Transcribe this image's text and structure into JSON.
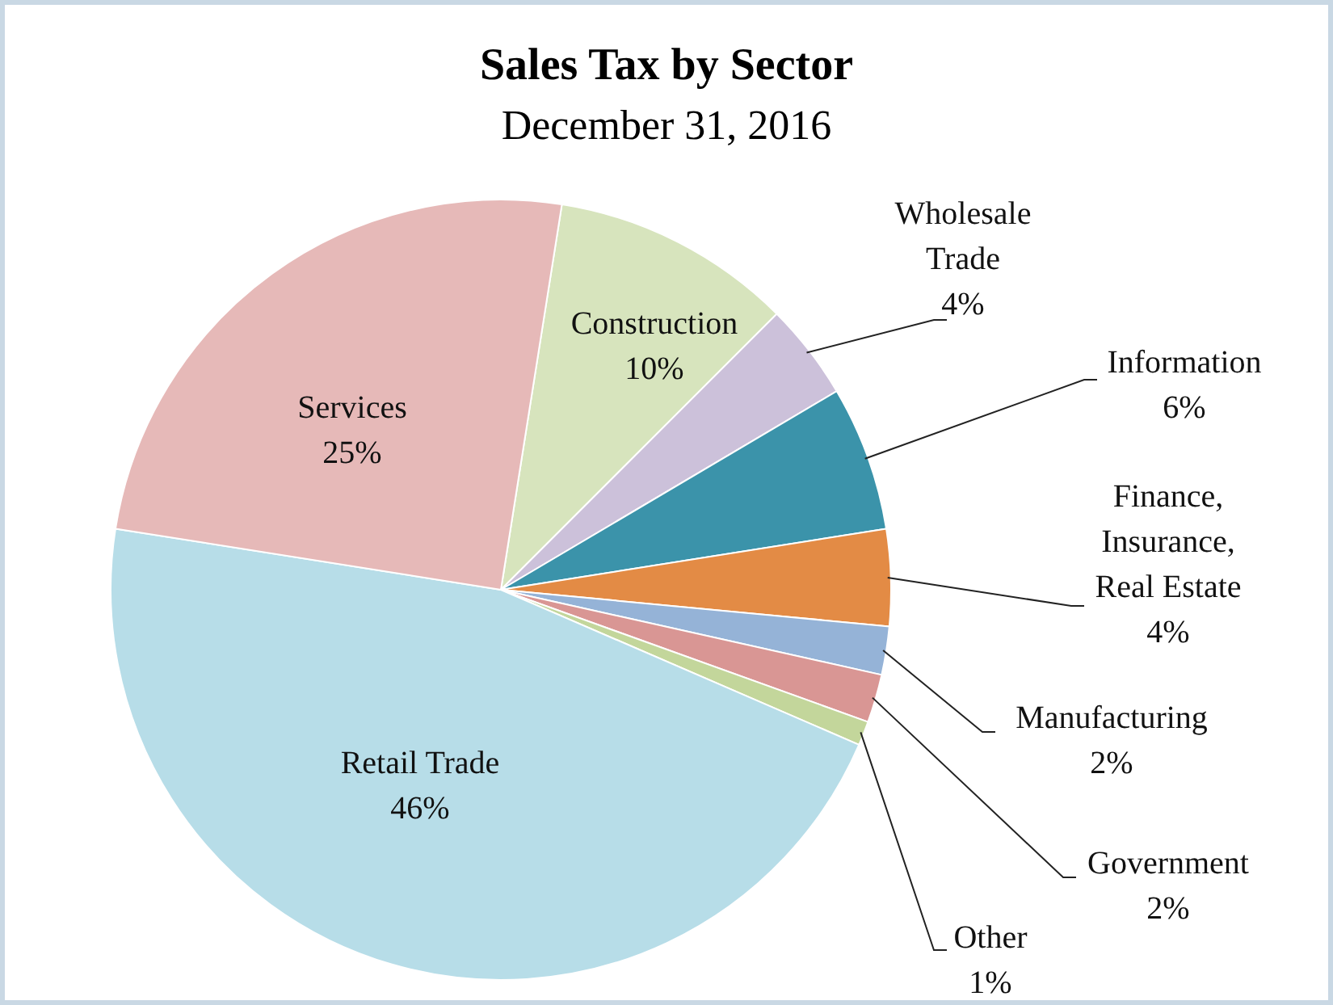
{
  "chart_data": {
    "type": "pie",
    "title": "Sales Tax by Sector",
    "subtitle": "December 31, 2016",
    "categories": [
      "Construction",
      "Wholesale Trade",
      "Information",
      "Finance, Insurance, Real Estate",
      "Manufacturing",
      "Government",
      "Other",
      "Retail Trade",
      "Services"
    ],
    "values": [
      10,
      4,
      6,
      4,
      2,
      2,
      1,
      46,
      25
    ],
    "value_labels": [
      "10%",
      "4%",
      "6%",
      "4%",
      "2%",
      "2%",
      "1%",
      "46%",
      "25%"
    ],
    "colors": [
      "#d7e4bd",
      "#ccc1da",
      "#3b93aa",
      "#e38b45",
      "#95b3d7",
      "#d99694",
      "#c3d69b",
      "#b7dde8",
      "#e6b9b8"
    ],
    "legend": false
  }
}
